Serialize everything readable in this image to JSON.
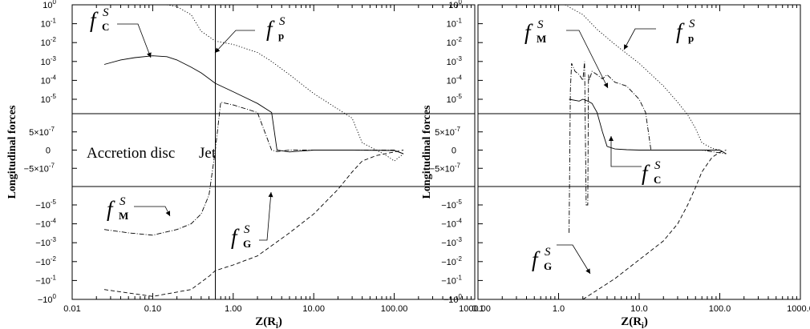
{
  "chart_data": [
    {
      "type": "line",
      "panel": "left",
      "xscale": "log",
      "xlim": [
        0.01,
        1000
      ],
      "xticklabels": [
        "0.01",
        "0.10",
        "1.00",
        "10.00",
        "100.00",
        "1000.00"
      ],
      "xlabel": "Z(R",
      "xlabel_sub": "i",
      "xlabel_end": ")",
      "ylabel": "Longitudinal forces",
      "yscale": "symmetric-log (positive decades on top, linear band ±1e-6 in middle, negative decades below)",
      "yticklabels_top": [
        "10",
        "10",
        "10",
        "10",
        "10",
        "10"
      ],
      "yticklabels_top_exp": [
        "0",
        "-1",
        "-2",
        "-3",
        "-4",
        "-5"
      ],
      "yticklabels_mid": [
        "5×10",
        "0",
        "−5×10"
      ],
      "yticklabels_mid_exp": [
        "-7",
        "",
        "-7"
      ],
      "yticklabels_bottom": [
        "−10",
        "−10",
        "−10",
        "−10",
        "−10",
        "−10"
      ],
      "yticklabels_bottom_exp": [
        "-5",
        "-4",
        "-3",
        "-2",
        "-1",
        "0"
      ],
      "region_labels": [
        "Accretion disc",
        "Jet"
      ],
      "disc_jet_boundary_x": 0.6,
      "series": [
        {
          "name": "f_C^S",
          "label": "f",
          "sub": "C",
          "sup": "S",
          "style": "solid",
          "x": [
            0.025,
            0.04,
            0.06,
            0.1,
            0.15,
            0.2,
            0.3,
            0.4,
            0.6,
            1.0,
            2.0,
            3.0,
            3.5,
            5.0,
            10.0,
            30.0,
            100.0,
            130.0
          ],
          "y": [
            0.0007,
            0.0012,
            0.0016,
            0.002,
            0.0018,
            0.0012,
            0.0005,
            0.00025,
            7e-05,
            2.5e-05,
            6e-06,
            2e-06,
            0,
            -5e-08,
            0,
            0,
            -1e-08,
            -1e-07
          ]
        },
        {
          "name": "f_p^S",
          "label": "f",
          "sub": "p",
          "sup": "S",
          "style": "dotted",
          "x": [
            0.15,
            0.2,
            0.3,
            0.4,
            0.6,
            1.0,
            2.0,
            3.0,
            5.0,
            10.0,
            20.0,
            30.0,
            40.0,
            60.0,
            80.0,
            100.0,
            130.0
          ],
          "y": [
            1.0,
            0.8,
            0.3,
            0.04,
            0.012,
            0.008,
            0.003,
            0.001,
            0.0002,
            2e-05,
            3e-06,
            1e-06,
            2e-07,
            0,
            -1.5e-07,
            -3e-07,
            -1e-07
          ]
        },
        {
          "name": "f_M^S",
          "label": "f",
          "sub": "M",
          "sup": "S",
          "style": "dashdot",
          "x": [
            0.025,
            0.05,
            0.1,
            0.2,
            0.3,
            0.4,
            0.5,
            0.6,
            0.7,
            1.0,
            2.0,
            3.0,
            3.5,
            5.0,
            10.0,
            30.0,
            100.0,
            130.0
          ],
          "y": [
            -0.0002,
            -0.0003,
            -0.0004,
            -0.0002,
            -0.0001,
            -3e-05,
            -3e-06,
            0,
            7e-06,
            5e-06,
            2e-06,
            0,
            -4e-08,
            0,
            0,
            0,
            0,
            -1e-07
          ]
        },
        {
          "name": "f_G^S",
          "label": "f",
          "sub": "G",
          "sup": "S",
          "style": "dashed",
          "x": [
            0.025,
            0.1,
            0.3,
            0.5,
            0.6,
            1.0,
            2.0,
            5.0,
            10.0,
            20.0,
            30.0,
            40.0,
            60.0,
            100.0,
            130.0
          ],
          "y": [
            -0.3,
            -0.7,
            -0.3,
            -0.06,
            -0.03,
            -0.015,
            -0.005,
            -0.0003,
            -3e-05,
            -1.5e-06,
            -6e-07,
            -3e-07,
            -1.5e-07,
            -5e-08,
            0
          ]
        }
      ]
    },
    {
      "type": "line",
      "panel": "right",
      "xscale": "log",
      "xlim": [
        0.1,
        1000
      ],
      "xticklabels": [
        "0.1",
        "1.0",
        "10.0",
        "100.0",
        "1000.0"
      ],
      "xlabel": "Z(R",
      "xlabel_sub": "i",
      "xlabel_end": ")",
      "ylabel": "Longitudinal forces",
      "yscale": "symmetric-log (positive decades on top, linear band ±1e-6 in middle, negative decades below)",
      "yticklabels_top": [
        "10",
        "10",
        "10",
        "10",
        "10",
        "10"
      ],
      "yticklabels_top_exp": [
        "0",
        "-1",
        "-2",
        "-3",
        "-4",
        "-5"
      ],
      "yticklabels_mid": [
        "5×10",
        "0",
        "−5×10"
      ],
      "yticklabels_mid_exp": [
        "-7",
        "",
        "-7"
      ],
      "yticklabels_bottom": [
        "−10",
        "−10",
        "−10",
        "−10",
        "−10",
        "−10"
      ],
      "yticklabels_bottom_exp": [
        "-5",
        "-4",
        "-3",
        "-2",
        "-1",
        "0"
      ],
      "series": [
        {
          "name": "f_M^S",
          "label": "f",
          "sub": "M",
          "sup": "S",
          "style": "dashdot",
          "x": [
            1.35,
            1.4,
            1.45,
            1.6,
            1.8,
            2.0,
            2.1,
            2.2,
            2.25,
            2.3,
            2.35,
            2.4,
            2.6,
            3.0,
            3.5,
            4.0,
            5.0,
            7.0,
            10.0,
            12.0,
            14.0,
            20.0,
            60.0,
            120.0
          ],
          "y": [
            -0.0003,
            3e-05,
            0.0008,
            0.0003,
            0.0002,
            0.0001,
            0.001,
            -1e-05,
            -1e-05,
            -1e-05,
            0.0002,
            0.0001,
            0.0003,
            0.0002,
            0.00012,
            0.0002,
            8e-05,
            5e-05,
            1e-05,
            2e-06,
            0,
            0,
            0,
            -1e-07
          ]
        },
        {
          "name": "f_p^S",
          "label": "f",
          "sub": "p",
          "sup": "S",
          "style": "dotted",
          "x": [
            1.2,
            2.0,
            3.0,
            5.0,
            10.0,
            20.0,
            30.0,
            40.0,
            50.0,
            60.0,
            80.0,
            100.0,
            120.0
          ],
          "y": [
            1.0,
            0.3,
            0.05,
            0.008,
            0.0008,
            5e-05,
            7e-06,
            1.5e-06,
            6e-07,
            2e-07,
            5e-08,
            0,
            -1e-07
          ]
        },
        {
          "name": "f_C^S",
          "label": "f",
          "sub": "C",
          "sup": "S",
          "style": "solid",
          "x": [
            1.35,
            1.8,
            2.0,
            2.3,
            2.6,
            3.0,
            3.5,
            4.0,
            5.0,
            7.0,
            10.0,
            30.0,
            100.0,
            120.0
          ],
          "y": [
            1e-05,
            8e-06,
            1e-05,
            8e-06,
            6e-06,
            2e-06,
            5e-07,
            1e-07,
            3e-08,
            1e-08,
            0,
            0,
            0,
            -1e-07
          ]
        },
        {
          "name": "f_G^S",
          "label": "f",
          "sub": "G",
          "sup": "S",
          "style": "dashed",
          "x": [
            2.0,
            5.0,
            10.0,
            20.0,
            30.0,
            40.0,
            50.0,
            60.0,
            80.0,
            100.0,
            120.0
          ],
          "y": [
            -1.0,
            -0.08,
            -0.008,
            -0.0008,
            -0.0001,
            -1e-05,
            -1.2e-06,
            -6e-07,
            -2e-07,
            -6e-08,
            0
          ]
        }
      ]
    }
  ]
}
